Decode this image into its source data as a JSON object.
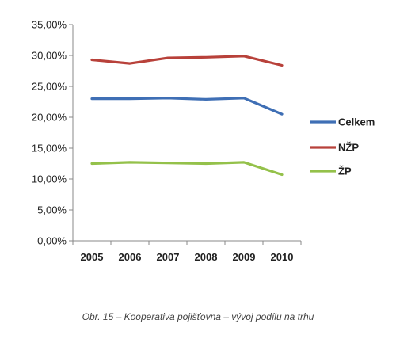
{
  "caption": "Obr. 15 – Kooperativa pojišťovna – vývoj podílu na trhu",
  "chart_data": {
    "type": "line",
    "title": "",
    "xlabel": "",
    "ylabel": "",
    "x": [
      "2005",
      "2006",
      "2007",
      "2008",
      "2009",
      "2010"
    ],
    "ylim": [
      0,
      35
    ],
    "ytick_labels": [
      "0,00%",
      "5,00%",
      "10,00%",
      "15,00%",
      "20,00%",
      "25,00%",
      "30,00%",
      "35,00%"
    ],
    "grid": false,
    "legend_position": "right",
    "series": [
      {
        "name": "Celkem",
        "color": "#3f6fb5",
        "values": [
          23.0,
          23.0,
          23.1,
          22.9,
          23.1,
          20.5
        ]
      },
      {
        "name": "NŽP",
        "color": "#b8413a",
        "values": [
          29.3,
          28.7,
          29.6,
          29.7,
          29.9,
          28.4
        ]
      },
      {
        "name": "ŽP",
        "color": "#94c14a",
        "values": [
          12.5,
          12.7,
          12.6,
          12.5,
          12.7,
          10.7
        ]
      }
    ]
  }
}
